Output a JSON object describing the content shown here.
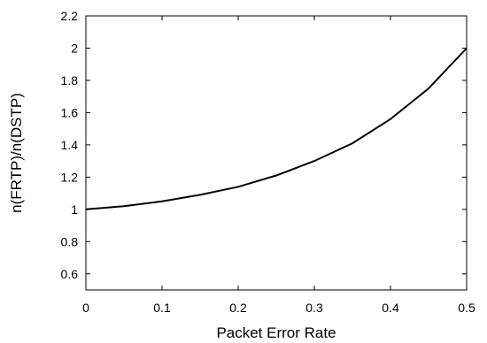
{
  "chart_data": {
    "type": "line",
    "title": "",
    "xlabel": "Packet Error Rate",
    "ylabel": "n(FRTP)/n(DSTP)",
    "xlim": [
      0,
      0.5
    ],
    "ylim": [
      0.5,
      2.2
    ],
    "xticks": [
      0,
      0.1,
      0.2,
      0.3,
      0.4,
      0.5
    ],
    "xtick_labels": [
      "0",
      "0.1",
      "0.2",
      "0.3",
      "0.4",
      "0.5"
    ],
    "yticks": [
      0.6,
      0.8,
      1,
      1.2,
      1.4,
      1.6,
      1.8,
      2,
      2.2
    ],
    "ytick_labels": [
      "0.6",
      "0.8",
      "1",
      "1.2",
      "1.4",
      "1.6",
      "1.8",
      "2",
      "2.2"
    ],
    "grid": false,
    "legend": "none",
    "series": [
      {
        "color": "#000000",
        "x": [
          0,
          0.05,
          0.1,
          0.15,
          0.2,
          0.25,
          0.3,
          0.35,
          0.4,
          0.45,
          0.5
        ],
        "y": [
          1.0,
          1.02,
          1.05,
          1.09,
          1.14,
          1.21,
          1.3,
          1.41,
          1.56,
          1.75,
          2.0
        ]
      }
    ]
  }
}
